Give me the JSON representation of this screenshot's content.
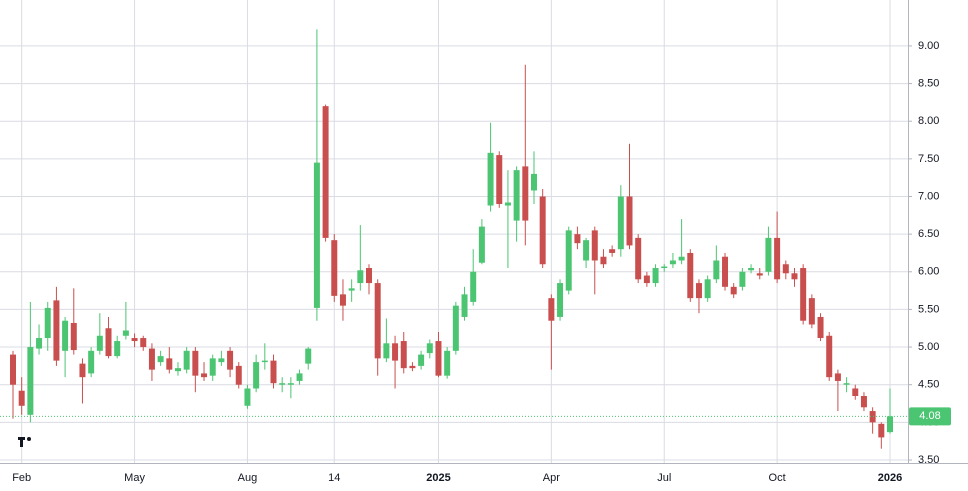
{
  "chart_data": {
    "type": "candlestick",
    "categories": [
      null,
      "Feb",
      null,
      null,
      null,
      null,
      null,
      null,
      null,
      null,
      null,
      null,
      null,
      null,
      "May",
      null,
      null,
      null,
      null,
      null,
      null,
      null,
      null,
      null,
      null,
      null,
      null,
      "Aug",
      null,
      null,
      null,
      null,
      null,
      null,
      null,
      null,
      null,
      "14",
      null,
      null,
      null,
      null,
      null,
      null,
      null,
      null,
      null,
      null,
      null,
      "2025",
      null,
      null,
      null,
      null,
      null,
      null,
      null,
      null,
      null,
      null,
      null,
      null,
      "Apr",
      null,
      null,
      null,
      null,
      null,
      null,
      null,
      null,
      null,
      null,
      null,
      null,
      "Jul",
      null,
      null,
      null,
      null,
      null,
      null,
      null,
      null,
      null,
      null,
      null,
      null,
      "Oct",
      null,
      null,
      null,
      null,
      null,
      null,
      null,
      null,
      null,
      null,
      null,
      null,
      "2026"
    ],
    "open": [
      4.9,
      4.42,
      4.1,
      4.98,
      5.12,
      5.62,
      4.95,
      5.32,
      4.78,
      4.65,
      4.95,
      5.25,
      4.88,
      5.15,
      5.12,
      5.12,
      4.98,
      4.8,
      4.85,
      4.68,
      4.7,
      4.95,
      4.65,
      4.62,
      4.8,
      4.95,
      4.75,
      4.22,
      4.45,
      4.8,
      4.82,
      4.5,
      4.5,
      4.55,
      4.78,
      5.52,
      8.2,
      6.42,
      5.7,
      5.75,
      5.85,
      6.05,
      5.85,
      4.85,
      5.05,
      5.08,
      4.75,
      4.75,
      4.92,
      5.08,
      4.62,
      4.95,
      5.4,
      5.6,
      6.12,
      6.88,
      7.55,
      6.88,
      6.68,
      7.4,
      7.08,
      7.0,
      5.65,
      5.4,
      5.75,
      6.5,
      6.15,
      6.55,
      6.2,
      6.3,
      6.3,
      7.0,
      6.45,
      5.95,
      5.85,
      6.05,
      6.1,
      6.15,
      6.25,
      5.85,
      5.65,
      5.9,
      6.2,
      5.8,
      5.8,
      6.02,
      5.98,
      6.0,
      6.45,
      6.1,
      5.98,
      6.05,
      5.65,
      5.4,
      5.15,
      4.65,
      4.5,
      4.45,
      4.35,
      4.15,
      3.98,
      3.87
    ],
    "high": [
      4.95,
      4.6,
      5.6,
      5.3,
      5.6,
      5.8,
      5.4,
      5.78,
      4.85,
      5.0,
      5.45,
      5.4,
      5.15,
      5.6,
      5.18,
      5.15,
      5.05,
      4.95,
      5.0,
      4.8,
      5.0,
      5.0,
      4.8,
      4.9,
      4.95,
      5.0,
      4.8,
      4.5,
      4.9,
      5.05,
      4.9,
      4.6,
      4.6,
      4.7,
      5.0,
      9.22,
      8.22,
      6.5,
      5.9,
      5.9,
      6.62,
      6.1,
      5.9,
      5.38,
      5.15,
      5.2,
      4.8,
      4.95,
      5.1,
      5.2,
      5.0,
      5.6,
      5.8,
      6.3,
      6.7,
      7.98,
      7.6,
      7.35,
      7.4,
      8.75,
      7.6,
      7.1,
      5.7,
      5.9,
      6.6,
      6.6,
      6.45,
      6.6,
      6.3,
      6.35,
      7.15,
      7.7,
      6.5,
      6.0,
      6.1,
      6.1,
      6.25,
      6.7,
      6.3,
      5.9,
      5.95,
      6.35,
      6.25,
      5.85,
      6.05,
      6.1,
      6.05,
      6.6,
      6.8,
      6.15,
      6.05,
      6.1,
      5.7,
      5.45,
      5.2,
      4.7,
      4.6,
      4.5,
      4.4,
      4.2,
      4.0,
      4.45
    ],
    "low": [
      4.05,
      4.1,
      4.0,
      4.9,
      4.95,
      4.75,
      4.6,
      4.9,
      4.25,
      4.6,
      4.9,
      4.85,
      4.85,
      5.1,
      5.0,
      4.95,
      4.55,
      4.75,
      4.65,
      4.62,
      4.65,
      4.4,
      4.55,
      4.55,
      4.75,
      4.6,
      4.45,
      4.18,
      4.4,
      4.7,
      4.45,
      4.4,
      4.32,
      4.5,
      4.7,
      5.35,
      6.4,
      5.6,
      5.35,
      5.6,
      5.75,
      5.7,
      4.62,
      4.8,
      4.45,
      4.65,
      4.68,
      4.7,
      4.85,
      4.6,
      4.58,
      4.9,
      5.35,
      5.55,
      6.1,
      6.8,
      6.85,
      6.05,
      6.4,
      6.35,
      6.9,
      6.05,
      4.7,
      5.35,
      5.7,
      6.3,
      6.05,
      5.7,
      6.05,
      6.2,
      6.2,
      6.3,
      5.85,
      5.8,
      5.8,
      6.0,
      6.05,
      6.1,
      5.6,
      5.45,
      5.6,
      5.85,
      5.75,
      5.65,
      5.75,
      5.98,
      5.9,
      5.95,
      5.85,
      5.9,
      5.8,
      5.3,
      5.25,
      5.08,
      4.55,
      4.15,
      4.4,
      4.3,
      4.15,
      3.85,
      3.65,
      3.85
    ],
    "close": [
      4.5,
      4.22,
      5.0,
      5.12,
      5.52,
      4.82,
      5.35,
      4.96,
      4.6,
      4.95,
      5.15,
      4.88,
      5.08,
      5.22,
      5.08,
      5.0,
      4.7,
      4.88,
      4.7,
      4.72,
      4.95,
      4.62,
      4.6,
      4.85,
      4.85,
      4.7,
      4.5,
      4.45,
      4.8,
      4.82,
      4.52,
      4.52,
      4.52,
      4.65,
      4.98,
      7.45,
      6.45,
      5.68,
      5.55,
      5.78,
      6.02,
      5.85,
      4.85,
      5.05,
      4.82,
      4.72,
      4.72,
      4.9,
      5.05,
      4.62,
      4.95,
      5.55,
      5.7,
      6.0,
      6.6,
      7.58,
      6.9,
      6.92,
      7.35,
      6.68,
      7.3,
      6.1,
      5.35,
      5.85,
      6.55,
      6.38,
      6.42,
      6.15,
      6.1,
      6.25,
      7.0,
      6.35,
      5.9,
      5.85,
      6.05,
      6.07,
      6.15,
      6.2,
      5.65,
      5.65,
      5.9,
      6.15,
      5.8,
      5.7,
      6.0,
      6.05,
      5.95,
      6.45,
      5.9,
      5.98,
      5.9,
      5.35,
      5.3,
      5.12,
      4.6,
      4.55,
      4.52,
      4.35,
      4.2,
      4.0,
      3.8,
      4.08
    ],
    "up_color": "#4cc573",
    "down_color": "#c94f4f",
    "last_price": 4.08,
    "ylim": [
      3.46,
      9.61
    ],
    "yticks": [
      {
        "value": 3.5,
        "label": "3.50"
      },
      {
        "value": 4,
        "label": "4.00"
      },
      {
        "value": 4.5,
        "label": "4.50"
      },
      {
        "value": 5,
        "label": "5.00"
      },
      {
        "value": 5.5,
        "label": "5.50"
      },
      {
        "value": 6,
        "label": "6.00"
      },
      {
        "value": 6.5,
        "label": "6.50"
      },
      {
        "value": 7,
        "label": "7.00"
      },
      {
        "value": 7.5,
        "label": "7.50"
      },
      {
        "value": 8,
        "label": "8.00"
      },
      {
        "value": 8.5,
        "label": "8.50"
      },
      {
        "value": 9,
        "label": "9.00"
      }
    ],
    "grid": true
  }
}
